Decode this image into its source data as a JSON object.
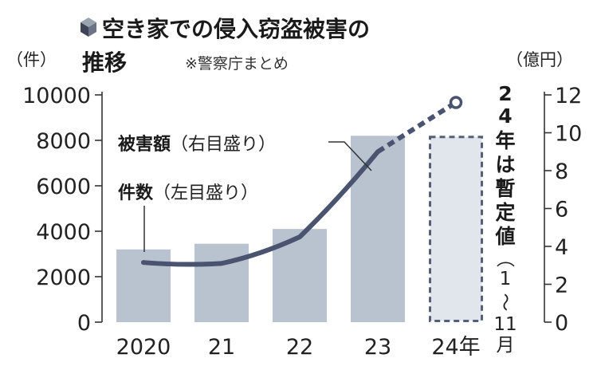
{
  "title": {
    "line1": "空き家での侵入窃盗被害の",
    "line2": "推移",
    "source": "※警察庁まとめ"
  },
  "chart_data": {
    "type": "bar+line",
    "categories": [
      "2020",
      "21",
      "22",
      "23",
      "24年"
    ],
    "bars": {
      "axis": "left",
      "values": [
        3200,
        3450,
        4100,
        8200,
        8200
      ],
      "provisional": [
        false,
        false,
        false,
        false,
        true
      ],
      "color": "#b9c2cf",
      "provisional_color": "#e1e5ec",
      "provisional_border": "#556077"
    },
    "line": {
      "axis": "right",
      "values": [
        3.15,
        3.1,
        4.5,
        9.0,
        11.6
      ],
      "dashed_from_index": 3,
      "color": "#4a5370"
    },
    "left_axis": {
      "unit": "（件）",
      "range": [
        0,
        10000
      ],
      "ticks": [
        "0",
        "2000",
        "4000",
        "6000",
        "8000",
        "10000"
      ]
    },
    "right_axis": {
      "unit": "（億円）",
      "range": [
        0,
        12
      ],
      "ticks": [
        "0",
        "2",
        "4",
        "6",
        "8",
        "10",
        "12"
      ]
    },
    "annotations": {
      "damage": {
        "bold": "被害額",
        "rest": "（右目盛り）"
      },
      "count": {
        "bold": "件数",
        "rest": "（左目盛り）"
      }
    },
    "provisional_note": {
      "bold": [
        "2",
        "4",
        "年",
        "は",
        "暫",
        "定",
        "値"
      ],
      "rest": [
        "（",
        "1",
        "〜",
        "11",
        "月",
        "）"
      ]
    }
  }
}
